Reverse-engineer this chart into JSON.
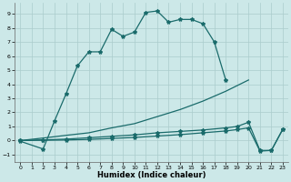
{
  "xlabel": "Humidex (Indice chaleur)",
  "xlim": [
    -0.5,
    23.5
  ],
  "ylim": [
    -1.5,
    9.8
  ],
  "xticks": [
    0,
    1,
    2,
    3,
    4,
    5,
    6,
    7,
    8,
    9,
    10,
    11,
    12,
    13,
    14,
    15,
    16,
    17,
    18,
    19,
    20,
    21,
    22,
    23
  ],
  "yticks": [
    -1,
    0,
    1,
    2,
    3,
    4,
    5,
    6,
    7,
    8,
    9
  ],
  "bg_color": "#cce8e8",
  "line_color": "#1a6b6b",
  "grid_color": "#aacccc",
  "curve1_x": [
    0,
    2,
    3,
    4,
    5,
    6,
    7,
    8,
    9,
    10,
    11,
    12,
    13,
    14,
    15,
    16,
    17,
    18
  ],
  "curve1_y": [
    -0.05,
    -0.6,
    1.4,
    3.3,
    5.3,
    6.3,
    6.3,
    7.9,
    7.4,
    7.7,
    9.1,
    9.2,
    8.4,
    8.6,
    8.6,
    8.3,
    7.0,
    4.3
  ],
  "curve2_x": [
    0,
    2,
    4,
    6,
    8,
    10,
    12,
    14,
    16,
    18,
    19,
    20
  ],
  "curve2_y": [
    0.0,
    0.18,
    0.37,
    0.55,
    0.9,
    1.2,
    1.7,
    2.2,
    2.8,
    3.5,
    3.9,
    4.3
  ],
  "curve3_x": [
    0,
    2,
    4,
    6,
    8,
    10,
    12,
    14,
    16,
    18,
    19,
    20,
    21,
    22,
    23
  ],
  "curve3_y": [
    0.0,
    0.05,
    0.1,
    0.2,
    0.3,
    0.4,
    0.55,
    0.65,
    0.75,
    0.9,
    1.0,
    1.3,
    -0.7,
    -0.7,
    0.8
  ],
  "curve4_x": [
    0,
    2,
    4,
    6,
    8,
    10,
    12,
    14,
    16,
    18,
    19,
    20,
    21,
    22,
    23
  ],
  "curve4_y": [
    0.0,
    0.02,
    0.04,
    0.08,
    0.15,
    0.22,
    0.32,
    0.42,
    0.55,
    0.68,
    0.78,
    0.9,
    -0.75,
    -0.7,
    0.8
  ]
}
